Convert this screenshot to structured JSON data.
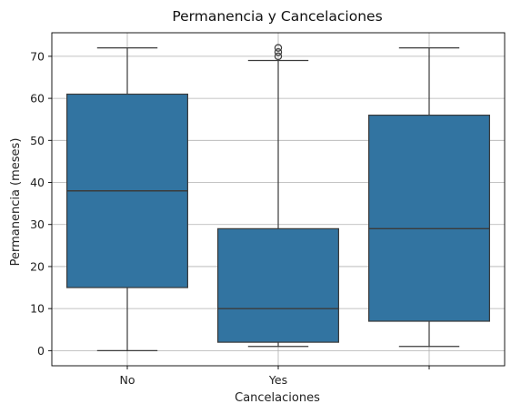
{
  "chart_data": {
    "type": "box",
    "title": "Permanencia y Cancelaciones",
    "xlabel": "Cancelaciones",
    "ylabel": "Permanencia (meses)",
    "categories": [
      "No",
      "Yes",
      ""
    ],
    "boxes": [
      {
        "category": "No",
        "whisker_low": 0,
        "q1": 15,
        "median": 38,
        "q3": 61,
        "whisker_high": 72,
        "outliers": []
      },
      {
        "category": "Yes",
        "whisker_low": 1,
        "q1": 2,
        "median": 10,
        "q3": 29,
        "whisker_high": 69,
        "outliers": [
          70,
          71,
          72
        ]
      },
      {
        "category": "",
        "whisker_low": 1,
        "q1": 7,
        "median": 29,
        "q3": 56,
        "whisker_high": 72,
        "outliers": []
      }
    ],
    "ylim": [
      -3.6,
      75.6
    ],
    "yticks": [
      0,
      10,
      20,
      30,
      40,
      50,
      60,
      70
    ],
    "grid": true,
    "colors": {
      "box_fill": "#3274a1",
      "box_edge": "#3b3b3b",
      "grid": "#b0b0b0",
      "axes": "#000000"
    }
  }
}
